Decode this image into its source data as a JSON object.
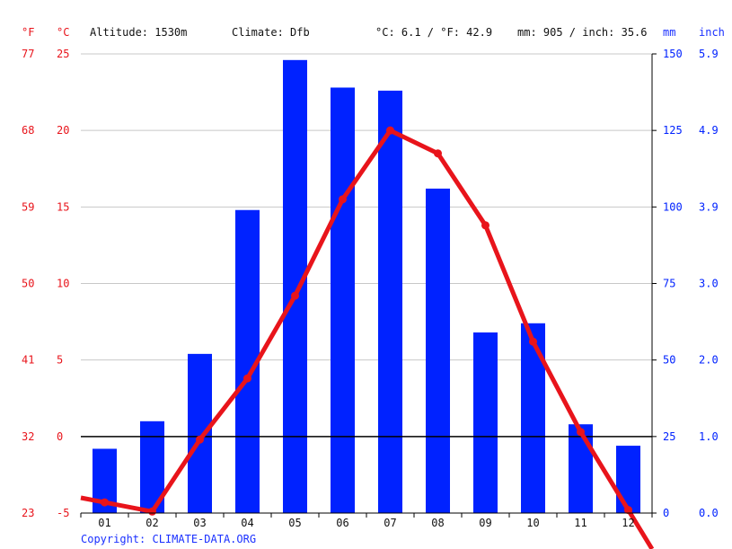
{
  "header": {
    "unit_f": "°F",
    "unit_c": "°C",
    "altitude": "Altitude: 1530m",
    "climate": "Climate: Dfb",
    "temp_summary": "°C: 6.1 / °F: 42.9",
    "precip_summary": "mm: 905 / inch: 35.6",
    "unit_mm": "mm",
    "unit_inch": "inch"
  },
  "footer": {
    "copyright": "Copyright: CLIMATE-DATA.ORG"
  },
  "colors": {
    "temperature": "#e8141b",
    "precipitation": "#0022ff",
    "grid": "#c8c8c8",
    "zero_line": "#000000"
  },
  "chart_data": {
    "type": "bar",
    "categories": [
      "01",
      "02",
      "03",
      "04",
      "05",
      "06",
      "07",
      "08",
      "09",
      "10",
      "11",
      "12"
    ],
    "series": [
      {
        "type": "bar",
        "axis": "right",
        "unit": "mm",
        "values": [
          21,
          30,
          52,
          99,
          148,
          139,
          138,
          106,
          59,
          62,
          29,
          22
        ]
      },
      {
        "type": "line",
        "axis": "left",
        "unit": "°C",
        "values": [
          -4.3,
          -4.9,
          -0.2,
          3.8,
          9.2,
          15.5,
          20.0,
          18.5,
          13.8,
          6.2,
          0.3,
          -4.8
        ]
      }
    ],
    "left_axis_c": {
      "ticks": [
        25,
        20,
        15,
        10,
        5,
        0,
        -5
      ],
      "range": [
        -5,
        25
      ]
    },
    "left_axis_f": {
      "ticks": [
        "77",
        "68",
        "59",
        "50",
        "41",
        "32",
        "23"
      ]
    },
    "right_axis_mm": {
      "ticks": [
        150,
        125,
        100,
        75,
        50,
        25,
        0
      ],
      "range": [
        0,
        150
      ]
    },
    "right_axis_inch": {
      "ticks": [
        "5.9",
        "4.9",
        "3.9",
        "3.0",
        "2.0",
        "1.0",
        "0.0"
      ]
    },
    "grid": true
  }
}
